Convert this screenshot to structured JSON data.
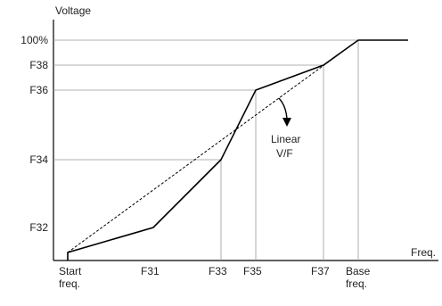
{
  "chart_data": {
    "type": "line",
    "ylabel": "Voltage",
    "xlabel": "Freq.",
    "grid": false,
    "x_ticks": [
      {
        "key": "start",
        "lines": [
          "Start",
          "freq."
        ]
      },
      {
        "key": "F31",
        "lines": [
          "F31"
        ]
      },
      {
        "key": "F33",
        "lines": [
          "F33"
        ]
      },
      {
        "key": "F35",
        "lines": [
          "F35"
        ]
      },
      {
        "key": "F37",
        "lines": [
          "F37"
        ]
      },
      {
        "key": "base",
        "lines": [
          "Base",
          "freq."
        ]
      }
    ],
    "y_ticks": [
      {
        "key": "F32",
        "label": "F32"
      },
      {
        "key": "F34",
        "label": "F34"
      },
      {
        "key": "F36",
        "label": "F36"
      },
      {
        "key": "F38",
        "label": "F38"
      },
      {
        "key": "100",
        "label": "100%"
      }
    ],
    "series": [
      {
        "style": "solid",
        "points": [
          {
            "x": "start",
            "y": "start"
          },
          {
            "x": "start",
            "y": "F32s"
          },
          {
            "x": "F31",
            "y": "F32"
          },
          {
            "x": "F33",
            "y": "F34"
          },
          {
            "x": "F35",
            "y": "F36"
          },
          {
            "x": "F37",
            "y": "F38"
          },
          {
            "x": "base",
            "y": "100"
          },
          {
            "x": "end",
            "y": "100"
          }
        ]
      },
      {
        "name": "Linear V/F",
        "style": "dashed",
        "points": [
          {
            "x": "start",
            "y": "F32s"
          },
          {
            "x": "base",
            "y": "100"
          }
        ]
      }
    ],
    "annotation": {
      "lines": [
        "Linear",
        "V/F"
      ]
    }
  }
}
